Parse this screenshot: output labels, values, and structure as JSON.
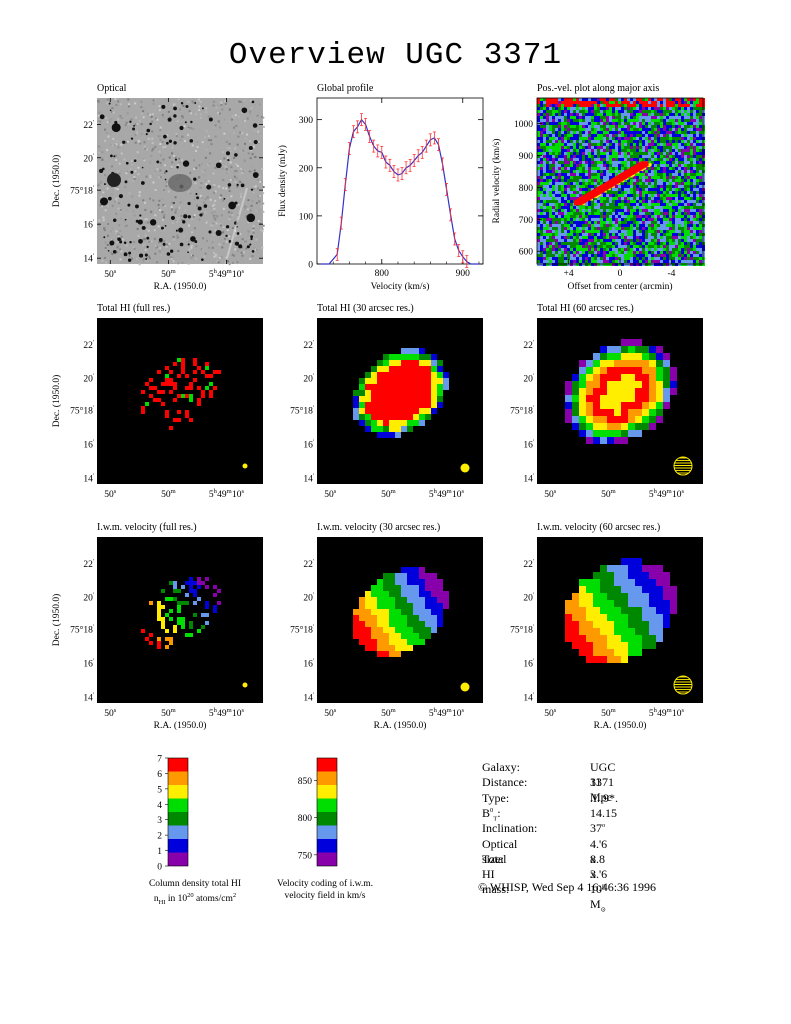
{
  "title": "Overview UGC 3371",
  "colors": {
    "palette": [
      "#8800aa",
      "#0000dd",
      "#6699ee",
      "#008800",
      "#00dd00",
      "#ffee00",
      "#ff9900",
      "#ff0000"
    ],
    "profile_line": "#3333cc",
    "profile_err": "#ff3333",
    "beam": "#ffee00",
    "map_bg": "#000000"
  },
  "panels": {
    "optical": {
      "title": "Optical"
    },
    "profile": {
      "title": "Global profile"
    },
    "pv": {
      "title": "Pos.-vel. plot along major axis"
    },
    "hi_full": {
      "title": "Total HI (full res.)"
    },
    "hi_30": {
      "title": "Total HI (30 arcsec res.)"
    },
    "hi_60": {
      "title": "Total HI (60 arcsec res.)"
    },
    "vel_full": {
      "title": "I.w.m. velocity (full res.)"
    },
    "vel_30": {
      "title": "I.w.m. velocity (30 arcsec res.)"
    },
    "vel_60": {
      "title": "I.w.m. velocity (60 arcsec res.)"
    }
  },
  "map_axes": {
    "xlabel": "R.A. (1950.0)",
    "ylabel": "Dec. (1950.0)",
    "yticks": [
      "14",
      "16",
      "75°18",
      "20",
      "22"
    ],
    "xticks": [
      "50s",
      "50m",
      "5h49m10s"
    ]
  },
  "chart_data": [
    {
      "type": "line",
      "title": "Global profile",
      "xlabel": "Velocity (km/s)",
      "ylabel": "Flux density (mJy)",
      "xlim": [
        720,
        925
      ],
      "ylim": [
        0,
        345
      ],
      "xticks": [
        700,
        800,
        900
      ],
      "yticks": [
        0,
        100,
        200,
        300
      ],
      "x": [
        725,
        735,
        745,
        750,
        755,
        760,
        765,
        770,
        775,
        780,
        785,
        790,
        795,
        800,
        805,
        810,
        815,
        820,
        825,
        830,
        835,
        840,
        845,
        850,
        855,
        860,
        865,
        870,
        875,
        880,
        885,
        890,
        895,
        900,
        905,
        910,
        915,
        920
      ],
      "y": [
        0,
        0,
        20,
        85,
        165,
        240,
        275,
        285,
        300,
        290,
        265,
        245,
        235,
        232,
        212,
        205,
        192,
        185,
        188,
        200,
        205,
        215,
        225,
        232,
        245,
        258,
        262,
        248,
        208,
        155,
        102,
        52,
        28,
        15,
        5,
        0,
        0,
        0
      ]
    },
    {
      "type": "scatter",
      "title": "Pos.-vel. plot along major axis",
      "xlabel": "Offset from center (arcmin)",
      "ylabel": "Radial velocity (km/s)",
      "xlim": [
        6.5,
        -6.5
      ],
      "ylim": [
        560,
        1080
      ],
      "xticks": [
        "+4",
        "0",
        "-4"
      ],
      "yticks": [
        600,
        700,
        800,
        900,
        1000
      ]
    },
    {
      "type": "heatmap",
      "title": "Column density total HI",
      "subtitle": "n_HI in 10^20 atoms/cm^2",
      "ticks": [
        0,
        1,
        2,
        3,
        4,
        5,
        6,
        7
      ]
    },
    {
      "type": "heatmap",
      "title": "Velocity coding of i.w.m.",
      "subtitle": "velocity field in km/s",
      "ticks": [
        750,
        800,
        850
      ]
    }
  ],
  "colorbars": {
    "column_density": {
      "caption1": "Column density total HI",
      "caption2": "n",
      "caption2_sub": "HI",
      "caption2_rest": " in 10",
      "caption2_sup": "20",
      "caption2_end": " atoms/cm",
      "caption2_sup2": "2"
    },
    "velocity": {
      "caption1": "Velocity coding of i.w.m.",
      "caption2": "velocity field in km/s"
    }
  },
  "info": [
    {
      "label": "Galaxy:",
      "value": "UGC 3371"
    },
    {
      "label": "Distance:",
      "value": "11 Mpc"
    },
    {
      "label": "Type:",
      "value": ".I..9*."
    },
    {
      "label": "B",
      "label_sup": "0",
      "label_sub": "T",
      "label_end": ":",
      "value": "14.15"
    },
    {
      "label": "Inclination:",
      "value": "37",
      "value_sup": "o"
    },
    {
      "label": "Optical size:",
      "value": "4.'6 x 3.'6"
    },
    {
      "label": "Total HI mass:",
      "value": "8.8 x 10",
      "value_sup": "8",
      "value_end": " M",
      "value_sub": "⊙"
    }
  ],
  "footer": "© WHISP, Wed Sep  4 16:46:36 1996"
}
